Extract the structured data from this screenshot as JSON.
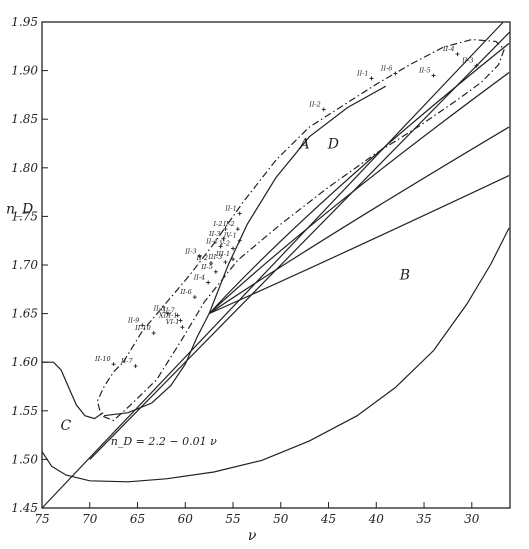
{
  "chart_data": {
    "type": "scatter",
    "title": "",
    "xlabel": "ν",
    "ylabel": "n_D",
    "xlim": [
      75,
      26
    ],
    "ylim": [
      1.45,
      1.95
    ],
    "x_reversed": true,
    "grid": false,
    "x_ticks": [
      "75",
      "70",
      "65",
      "60",
      "55",
      "50",
      "45",
      "40",
      "35",
      "30"
    ],
    "y_ticks": [
      "1.45",
      "1.50",
      "1.55",
      "1.60",
      "1.65",
      "1.70",
      "1.75",
      "1.80",
      "1.85",
      "1.90",
      "1.95"
    ],
    "equation": "n_D = 2.2 − 0.01 ν",
    "regions": [
      {
        "label": "A",
        "x": 47.5,
        "y": 1.82
      },
      {
        "label": "D",
        "x": 44.5,
        "y": 1.82
      },
      {
        "label": "B",
        "x": 37,
        "y": 1.685
      },
      {
        "label": "C",
        "x": 72.5,
        "y": 1.53
      }
    ],
    "points": [
      {
        "label": "II-4",
        "x": 31.5,
        "y": 1.917
      },
      {
        "label": "II-3",
        "x": 29.5,
        "y": 1.905
      },
      {
        "label": "II-6",
        "x": 38,
        "y": 1.897
      },
      {
        "label": "II-5",
        "x": 34,
        "y": 1.895
      },
      {
        "label": "II-1",
        "x": 40.5,
        "y": 1.892
      },
      {
        "label": "II-2",
        "x": 45.5,
        "y": 1.86
      },
      {
        "label": "II-1",
        "x": 54.3,
        "y": 1.753
      },
      {
        "label": "I-2",
        "x": 55.8,
        "y": 1.737
      },
      {
        "label": "II-2",
        "x": 54.5,
        "y": 1.737
      },
      {
        "label": "II-3",
        "x": 56,
        "y": 1.727
      },
      {
        "label": "IV-1",
        "x": 54.3,
        "y": 1.725
      },
      {
        "label": "II-4",
        "x": 56.3,
        "y": 1.719
      },
      {
        "label": "V-2",
        "x": 55,
        "y": 1.717
      },
      {
        "label": "II-3",
        "x": 58.5,
        "y": 1.709
      },
      {
        "label": "III-1",
        "x": 55,
        "y": 1.706
      },
      {
        "label": "II-2",
        "x": 57.3,
        "y": 1.702
      },
      {
        "label": "III-3",
        "x": 55.8,
        "y": 1.703
      },
      {
        "label": "II-5",
        "x": 56.8,
        "y": 1.693
      },
      {
        "label": "II-4",
        "x": 57.6,
        "y": 1.682
      },
      {
        "label": "II-6",
        "x": 59,
        "y": 1.667
      },
      {
        "label": "II-8",
        "x": 61.8,
        "y": 1.65
      },
      {
        "label": "II-7",
        "x": 60.8,
        "y": 1.648
      },
      {
        "label": "XIII-1",
        "x": 60.5,
        "y": 1.643
      },
      {
        "label": "II-9",
        "x": 64.5,
        "y": 1.638
      },
      {
        "label": "II-10",
        "x": 63.3,
        "y": 1.63
      },
      {
        "label": "VI-1",
        "x": 60.3,
        "y": 1.636
      },
      {
        "label": "II-10",
        "x": 67.5,
        "y": 1.598
      },
      {
        "label": "II-7",
        "x": 65.2,
        "y": 1.596
      }
    ]
  }
}
